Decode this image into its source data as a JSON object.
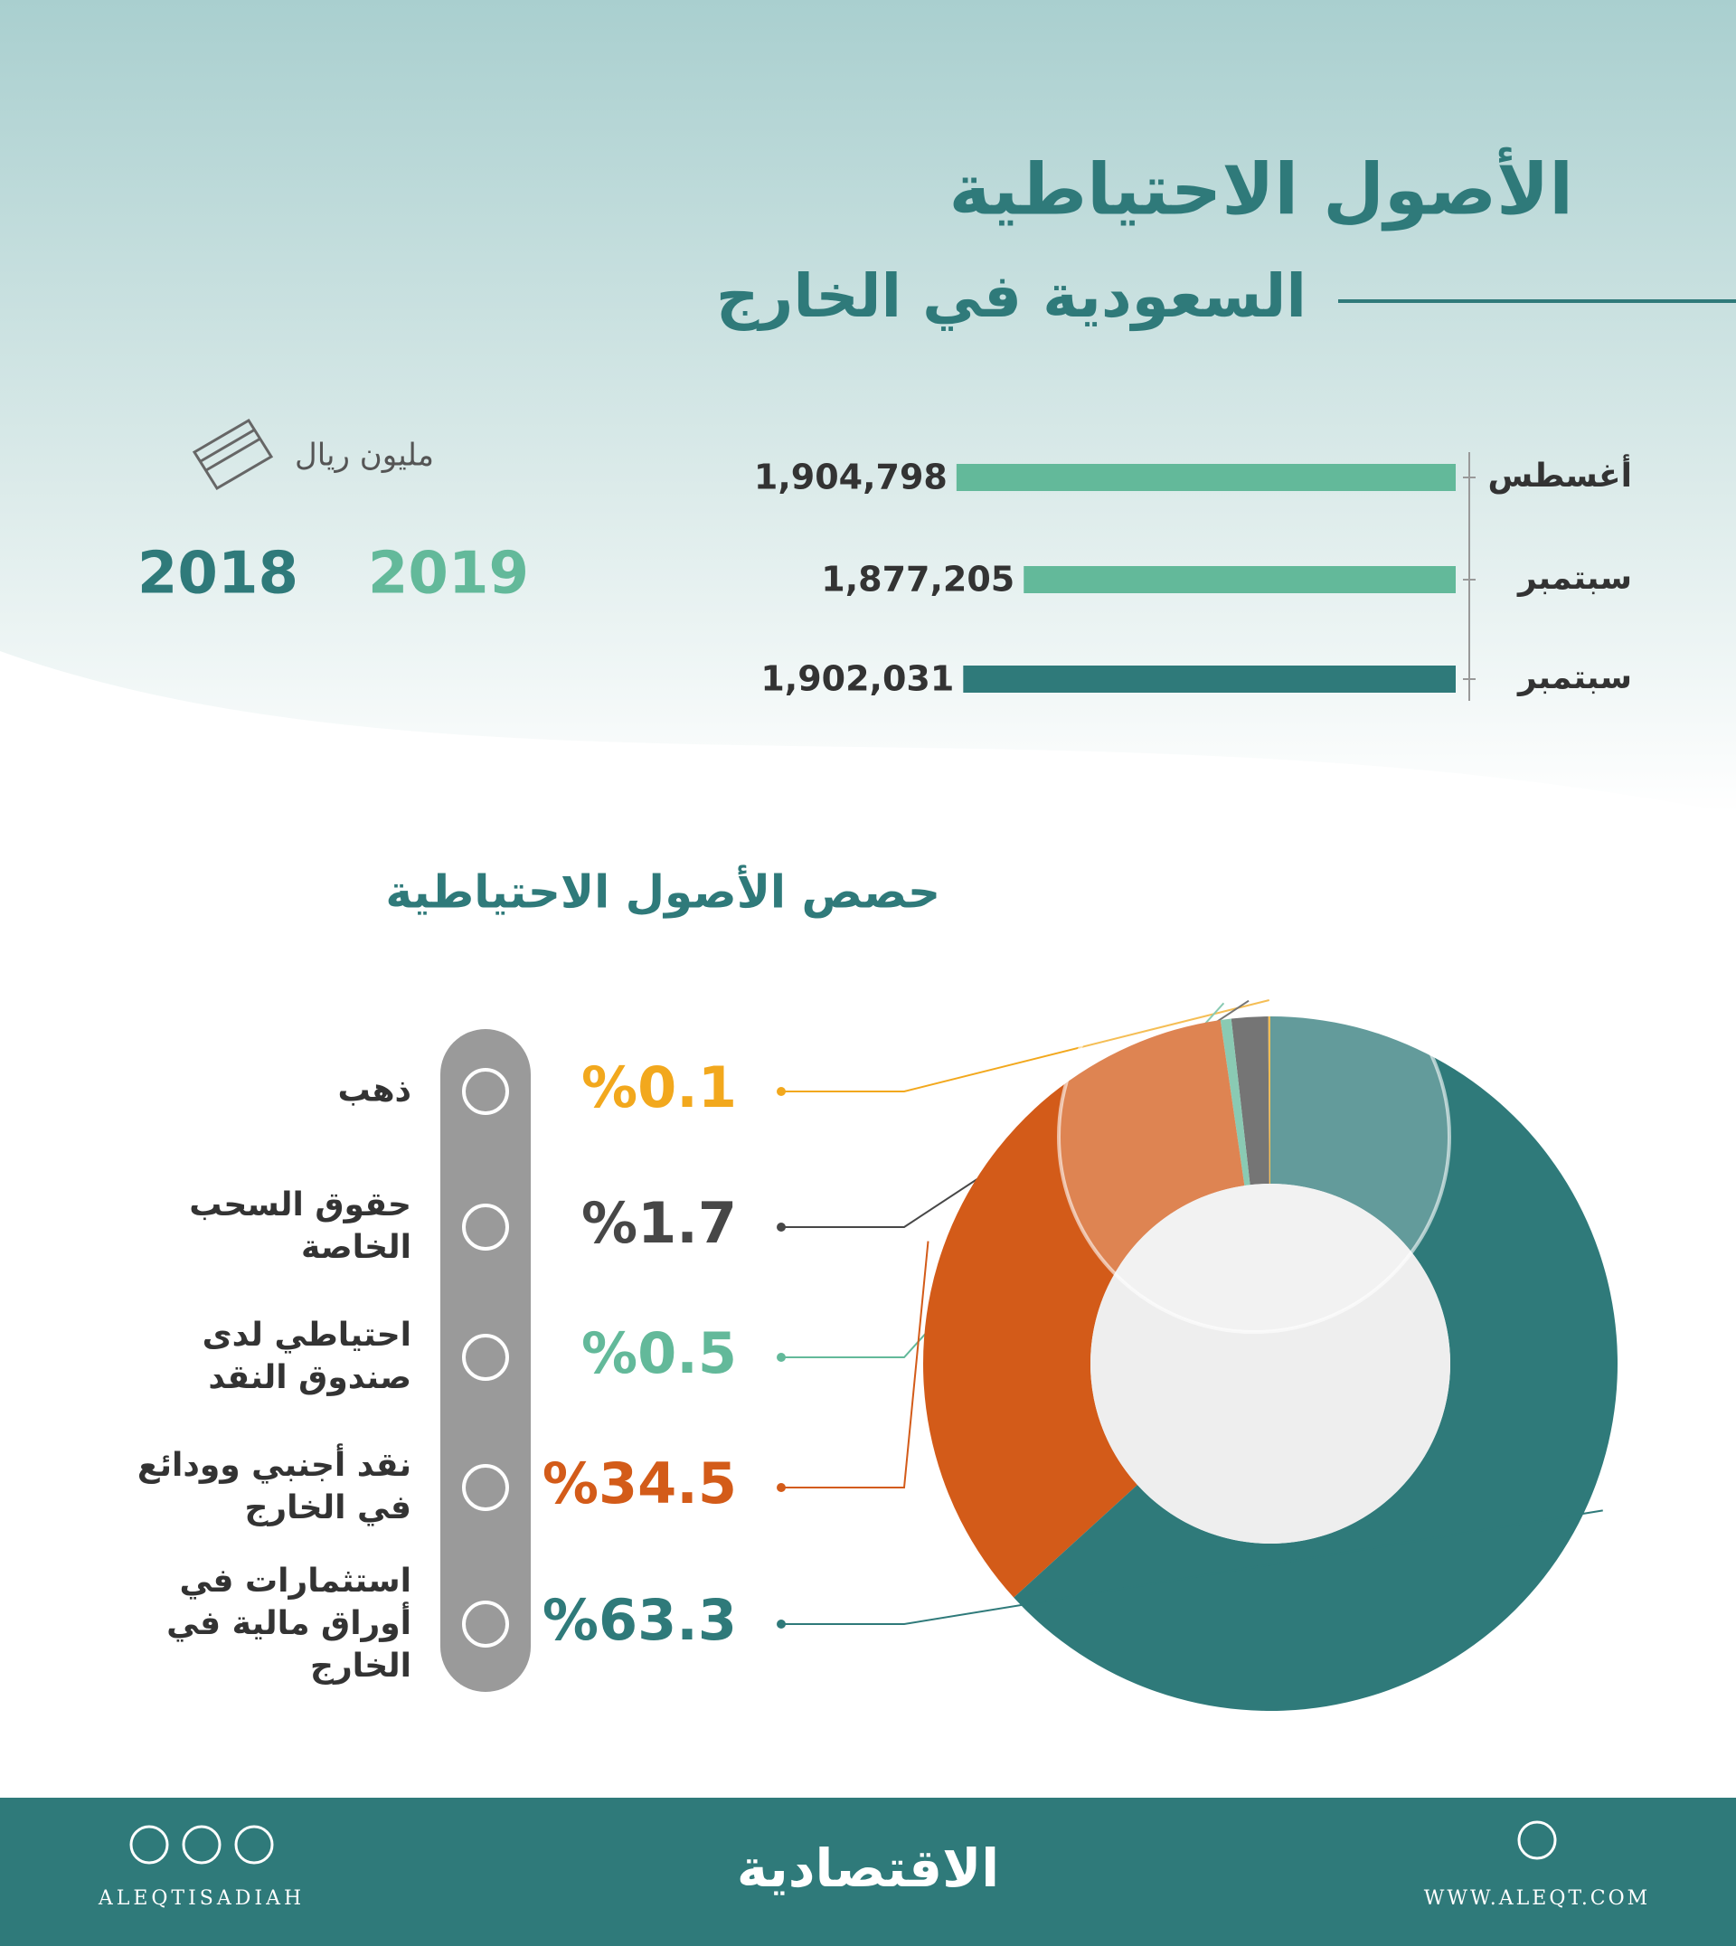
{
  "header": {
    "title_line1": "الأصول الاحتياطية",
    "title_line2": "السعودية في الخارج"
  },
  "chart_data": [
    {
      "type": "bar",
      "orientation": "horizontal",
      "unit_label": "مليون ريال",
      "categories": [
        "أغسطس",
        "سبتمبر",
        "سبتمبر"
      ],
      "series": [
        {
          "name": "2019",
          "color": "#63b99a",
          "values": [
            1904798,
            1877205,
            null
          ],
          "value_labels": [
            "1,904,798",
            "1,877,205",
            null
          ]
        },
        {
          "name": "2018",
          "color": "#2f7a7a",
          "values": [
            null,
            null,
            1902031
          ],
          "value_labels": [
            null,
            null,
            "1,902,031"
          ]
        }
      ],
      "xlim": [
        1700000,
        1950000
      ]
    },
    {
      "type": "pie",
      "donut": true,
      "title": "حصص الأصول الاحتياطية",
      "categories": [
        "ذهب",
        "حقوق السحب الخاصة",
        "احتياطي لدى صندوق النقد",
        "نقد أجنبي وودائع في الخارج",
        "استثمارات في أوراق مالية في الخارج"
      ],
      "values": [
        0.1,
        1.7,
        0.5,
        34.5,
        63.3
      ],
      "value_labels": [
        "%0.1",
        "%1.7",
        "%0.5",
        "%34.5",
        "%63.3"
      ],
      "colors": [
        "#f2a81d",
        "#474747",
        "#63b99a",
        "#d35b19",
        "#2f7a7a"
      ]
    }
  ],
  "footer": {
    "logo": "الاقتصادية",
    "handle": "ALEQTISADIAH",
    "website": "WWW.ALEQT.COM"
  }
}
